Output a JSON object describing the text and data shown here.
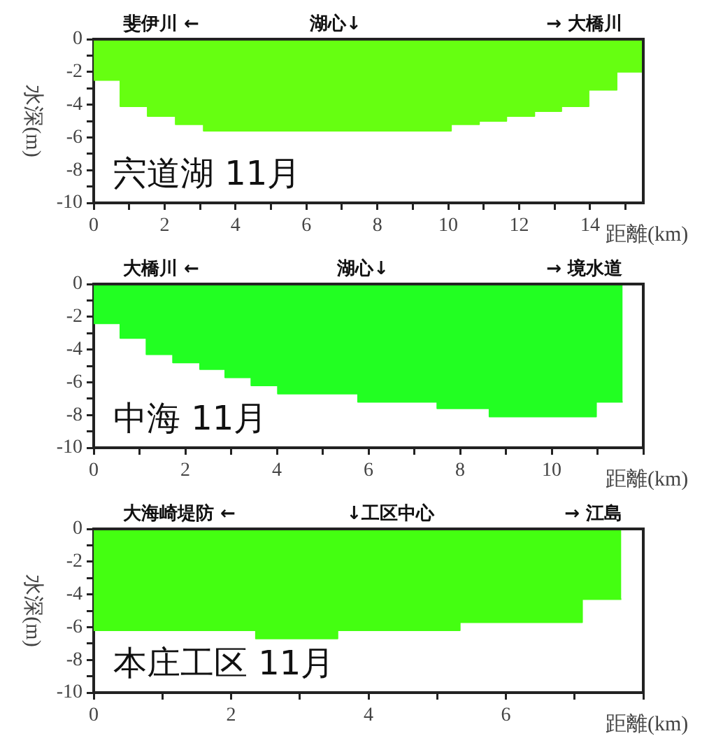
{
  "chart_data": [
    {
      "type": "area",
      "title": "宍道湖 11月",
      "xlabel": "距離(km)",
      "ylabel": "水深(m)",
      "annotations": [
        "斐伊川 ←",
        "湖心↓",
        "→ 大橋川"
      ],
      "x": [
        0,
        0.75,
        0.75,
        1.52,
        1.52,
        2.31,
        2.31,
        3.1,
        3.1,
        10.08,
        10.08,
        10.87,
        10.87,
        11.64,
        11.64,
        12.43,
        12.43,
        13.19,
        13.19,
        13.96,
        13.96,
        14.75,
        14.75,
        15.5
      ],
      "series": [
        {
          "color": "#66ff11",
          "values": [
            -2.5,
            -2.5,
            -4.1,
            -4.1,
            -4.7,
            -4.7,
            -5.2,
            -5.2,
            -5.6,
            -5.6,
            -5.2,
            -5.2,
            -5,
            -5,
            -4.7,
            -4.7,
            -4.4,
            -4.4,
            -4.1,
            -4.1,
            -3.1,
            -3.1,
            -2,
            -2
          ]
        }
      ],
      "xlim": [
        0,
        15.5
      ],
      "xticks": [
        0,
        {
          "value": 1,
          "label": null
        },
        2,
        {
          "value": 3,
          "label": null
        },
        4,
        {
          "value": 5,
          "label": null
        },
        6,
        {
          "value": 7,
          "label": null
        },
        8,
        {
          "value": 9,
          "label": null
        },
        10,
        {
          "value": 11,
          "label": null
        },
        12,
        {
          "value": 13,
          "label": null
        },
        14,
        {
          "value": 15,
          "label": null
        }
      ],
      "ylim": [
        -10,
        0
      ],
      "yticks": [
        -10,
        {
          "value": -9,
          "label": null
        },
        -8,
        {
          "value": -7,
          "label": null
        },
        -6,
        {
          "value": -5,
          "label": null
        },
        -4,
        {
          "value": -3,
          "label": null
        },
        -2,
        {
          "value": -1,
          "label": null
        },
        0
      ],
      "grid": false,
      "legend": false
    },
    {
      "type": "area",
      "title": "中海 11月",
      "xlabel": "距離(km)",
      "annotations": [
        "大橋川 ←",
        "湖心↓",
        "→ 境水道"
      ],
      "x": [
        0,
        0.58,
        0.58,
        1.15,
        1.15,
        1.73,
        1.73,
        2.32,
        2.32,
        2.87,
        2.87,
        3.44,
        3.44,
        4.02,
        4.02,
        5.77,
        5.77,
        7.5,
        7.5,
        8.64,
        8.64,
        10.97,
        10.97,
        11.55
      ],
      "series": [
        {
          "color": "#22ff22",
          "values": [
            -2.4,
            -2.4,
            -3.3,
            -3.3,
            -4.3,
            -4.3,
            -4.8,
            -4.8,
            -5.2,
            -5.2,
            -5.7,
            -5.7,
            -6.2,
            -6.2,
            -6.7,
            -6.7,
            -7.2,
            -7.2,
            -7.6,
            -7.6,
            -8.1,
            -8.1,
            -7.2,
            -7.2
          ]
        }
      ],
      "xlim": [
        0,
        12
      ],
      "xticks": [
        0,
        {
          "value": 1,
          "label": null
        },
        2,
        {
          "value": 3,
          "label": null
        },
        4,
        {
          "value": 5,
          "label": null
        },
        6,
        {
          "value": 7,
          "label": null
        },
        8,
        {
          "value": 9,
          "label": null
        },
        10,
        {
          "value": 11,
          "label": null
        },
        {
          "value": 12,
          "label": null
        }
      ],
      "ylim": [
        -10,
        0
      ],
      "yticks": [
        -10,
        {
          "value": -9,
          "label": null
        },
        -8,
        {
          "value": -7,
          "label": null
        },
        -6,
        {
          "value": -5,
          "label": null
        },
        -4,
        {
          "value": -3,
          "label": null
        },
        -2,
        {
          "value": -1,
          "label": null
        },
        0
      ],
      "grid": false,
      "legend": false
    },
    {
      "type": "area",
      "title": "本庄工区 11月",
      "xlabel": "距離(km)",
      "ylabel": "水深(m)",
      "annotations": [
        "大海崎堤防 ←",
        "↓工区中心",
        "→ 江島"
      ],
      "x": [
        0,
        2.36,
        2.36,
        3.55,
        3.55,
        5.33,
        5.33,
        7.11,
        7.11,
        7.68
      ],
      "series": [
        {
          "color": "#44ff11",
          "values": [
            -6.2,
            -6.2,
            -6.7,
            -6.7,
            -6.2,
            -6.2,
            -5.7,
            -5.7,
            -4.3,
            -4.3
          ]
        }
      ],
      "xlim": [
        0,
        8
      ],
      "xticks": [
        0,
        {
          "value": 1,
          "label": null
        },
        2,
        {
          "value": 3,
          "label": null
        },
        4,
        {
          "value": 5,
          "label": null
        },
        6,
        {
          "value": 7,
          "label": null
        },
        {
          "value": 8,
          "label": null
        }
      ],
      "ylim": [
        -10,
        0
      ],
      "yticks": [
        -10,
        {
          "value": -9,
          "label": null
        },
        -8,
        {
          "value": -7,
          "label": null
        },
        -6,
        {
          "value": -5,
          "label": null
        },
        -4,
        {
          "value": -3,
          "label": null
        },
        -2,
        {
          "value": -1,
          "label": null
        },
        0
      ],
      "grid": false,
      "legend": false
    }
  ]
}
